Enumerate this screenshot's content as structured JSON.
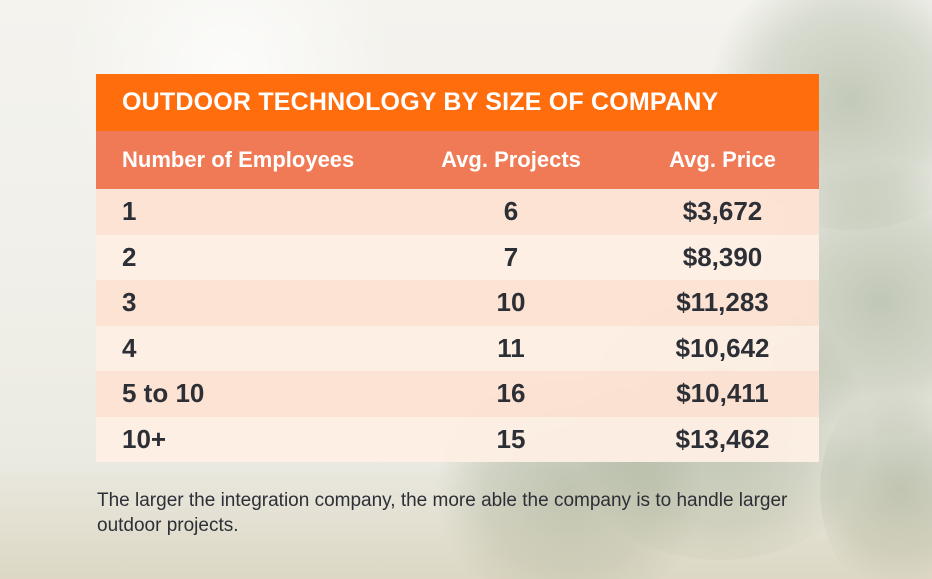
{
  "chart_data": {
    "type": "table",
    "title": "OUTDOOR TECHNOLOGY BY SIZE OF COMPANY",
    "columns": [
      "Number of Employees",
      "Avg. Projects",
      "Avg. Price"
    ],
    "rows": [
      [
        "1",
        "6",
        "$3,672"
      ],
      [
        "2",
        "7",
        "$8,390"
      ],
      [
        "3",
        "10",
        "$11,283"
      ],
      [
        "4",
        "11",
        "$10,642"
      ],
      [
        "5 to 10",
        "16",
        "$10,411"
      ],
      [
        "10+",
        "15",
        "$13,462"
      ]
    ]
  },
  "caption": "The larger the integration company, the more able the company is to handle larger outdoor projects.",
  "colors": {
    "title_bg": "#ff6d0c",
    "header_bg": "#f07a55",
    "row_odd": "#fce2d2",
    "row_even": "#fdeee3",
    "text_dark": "#2d2f36"
  }
}
